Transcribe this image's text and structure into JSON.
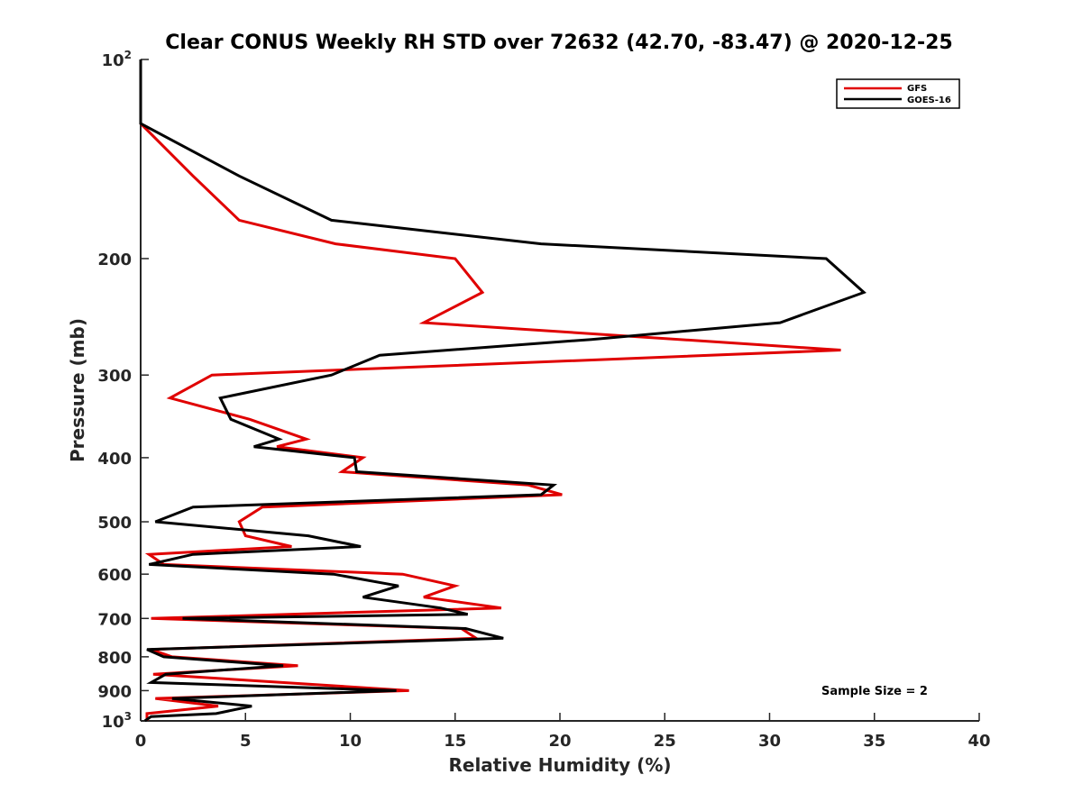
{
  "chart_data": {
    "type": "line",
    "title": "Clear CONUS Weekly RH STD over 72632 (42.70, -83.47) @ 2020-12-25",
    "xlabel": "Relative Humidity (%)",
    "ylabel": "Pressure (mb)",
    "xlim": [
      0,
      40
    ],
    "ylim": [
      100,
      1000
    ],
    "y_scale": "log",
    "y_reversed": true,
    "xticks": [
      0,
      5,
      10,
      15,
      20,
      25,
      30,
      35,
      40
    ],
    "yticks": [
      {
        "value": 100,
        "base": "10",
        "exp": "2"
      },
      {
        "value": 200,
        "label": "200"
      },
      {
        "value": 300,
        "label": "300"
      },
      {
        "value": 400,
        "label": "400"
      },
      {
        "value": 500,
        "label": "500"
      },
      {
        "value": 600,
        "label": "600"
      },
      {
        "value": 700,
        "label": "700"
      },
      {
        "value": 800,
        "label": "800"
      },
      {
        "value": 900,
        "label": "900"
      },
      {
        "value": 1000,
        "base": "10",
        "exp": "3"
      }
    ],
    "grid": false,
    "legend_position": "top-right",
    "annotation": "Sample Size = 2",
    "series": [
      {
        "name": "GFS",
        "color": "#e00000",
        "points": [
          [
            0,
            100
          ],
          [
            0,
            125
          ],
          [
            2.5,
            150
          ],
          [
            4.7,
            175
          ],
          [
            9.3,
            190
          ],
          [
            15,
            200
          ],
          [
            16.3,
            225
          ],
          [
            13.5,
            250
          ],
          [
            33.4,
            275
          ],
          [
            3.4,
            300
          ],
          [
            1.4,
            325
          ],
          [
            5.2,
            350
          ],
          [
            7.9,
            375
          ],
          [
            6.5,
            385
          ],
          [
            10.6,
            400
          ],
          [
            9.6,
            420
          ],
          [
            18.5,
            440
          ],
          [
            20.1,
            455
          ],
          [
            5.8,
            475
          ],
          [
            4.7,
            500
          ],
          [
            5.0,
            525
          ],
          [
            7.2,
            545
          ],
          [
            0.4,
            560
          ],
          [
            1.1,
            580
          ],
          [
            12.5,
            600
          ],
          [
            15.0,
            625
          ],
          [
            13.5,
            650
          ],
          [
            17.2,
            675
          ],
          [
            0.5,
            700
          ],
          [
            15.3,
            725
          ],
          [
            16.0,
            750
          ],
          [
            0.5,
            780
          ],
          [
            1.5,
            800
          ],
          [
            7.5,
            825
          ],
          [
            0.6,
            850
          ],
          [
            12.8,
            900
          ],
          [
            0.7,
            925
          ],
          [
            3.7,
            950
          ],
          [
            0.3,
            975
          ],
          [
            0.3,
            1000
          ]
        ]
      },
      {
        "name": "GOES-16",
        "color": "#000000",
        "points": [
          [
            0,
            100
          ],
          [
            0,
            125
          ],
          [
            4.7,
            150
          ],
          [
            9.1,
            175
          ],
          [
            19.1,
            190
          ],
          [
            32.7,
            200
          ],
          [
            34.5,
            225
          ],
          [
            30.5,
            250
          ],
          [
            21.5,
            265
          ],
          [
            11.4,
            280
          ],
          [
            9.1,
            300
          ],
          [
            3.8,
            325
          ],
          [
            4.3,
            350
          ],
          [
            6.6,
            375
          ],
          [
            5.4,
            385
          ],
          [
            10.2,
            400
          ],
          [
            10.3,
            420
          ],
          [
            19.7,
            440
          ],
          [
            19.1,
            455
          ],
          [
            2.5,
            475
          ],
          [
            0.7,
            500
          ],
          [
            8.0,
            525
          ],
          [
            10.5,
            545
          ],
          [
            2.5,
            560
          ],
          [
            0.4,
            580
          ],
          [
            9.2,
            600
          ],
          [
            12.3,
            625
          ],
          [
            10.6,
            650
          ],
          [
            14.3,
            675
          ],
          [
            15.6,
            690
          ],
          [
            2.0,
            700
          ],
          [
            15.5,
            725
          ],
          [
            17.3,
            750
          ],
          [
            0.3,
            780
          ],
          [
            1.1,
            800
          ],
          [
            6.8,
            825
          ],
          [
            1.2,
            850
          ],
          [
            0.5,
            875
          ],
          [
            12.2,
            900
          ],
          [
            1.5,
            925
          ],
          [
            5.3,
            950
          ],
          [
            3.6,
            975
          ],
          [
            0.5,
            985
          ],
          [
            0.2,
            1000
          ]
        ]
      }
    ]
  }
}
